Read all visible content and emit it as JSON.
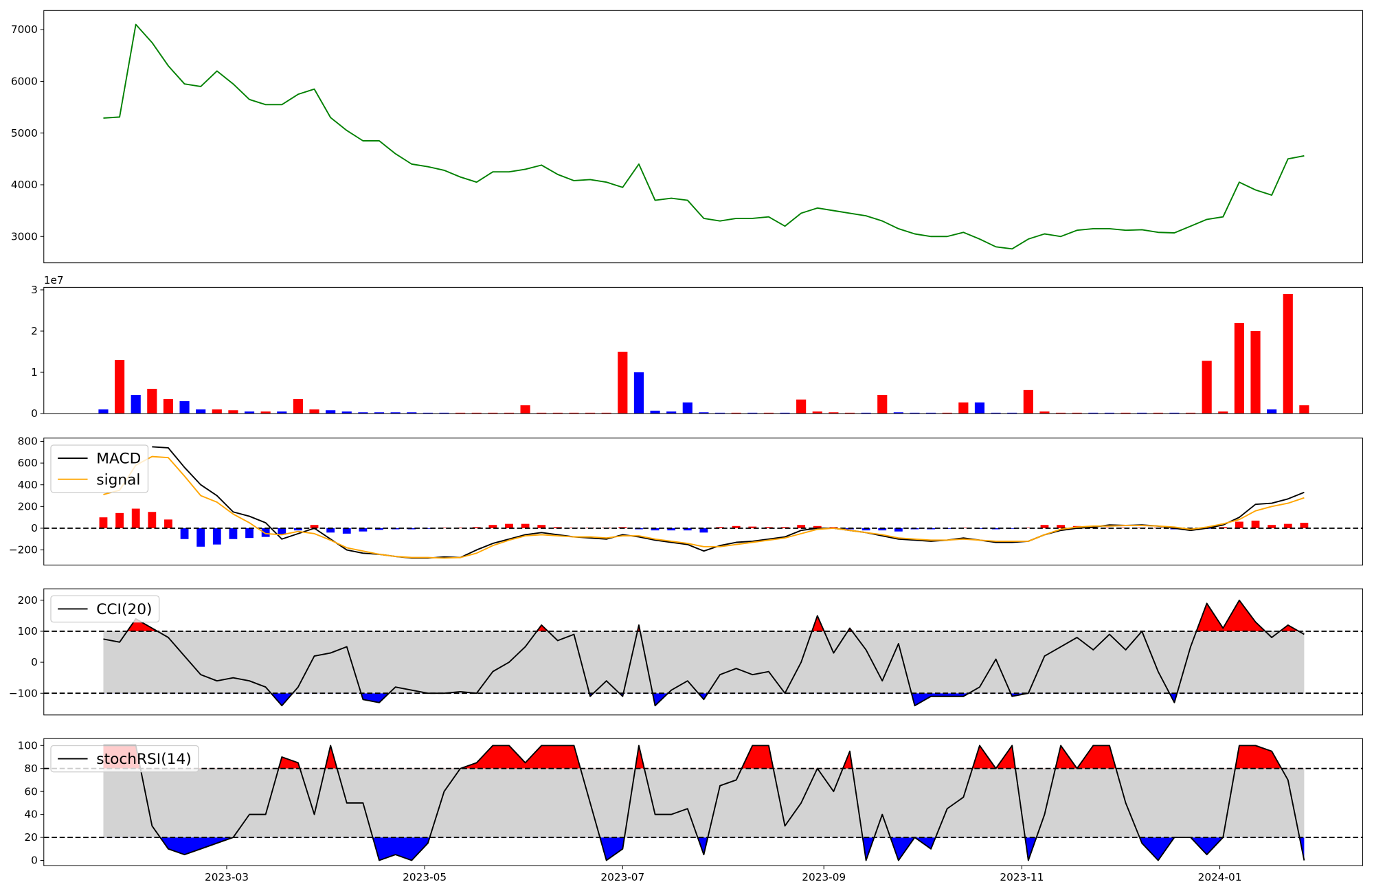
{
  "chart_data": [
    {
      "type": "line",
      "series": [
        {
          "color": "green",
          "values": [
            5290,
            5310,
            7100,
            6750,
            6300,
            5950,
            5900,
            6200,
            5950,
            5650,
            5550,
            5550,
            5750,
            5850,
            5300,
            5050,
            4850,
            4850,
            4600,
            4400,
            4350,
            4280,
            4150,
            4050,
            4250,
            4250,
            4300,
            4380,
            4200,
            4080,
            4100,
            4050,
            3950,
            4400,
            3700,
            3740,
            3700,
            3350,
            3300,
            3350,
            3350,
            3380,
            3200,
            3450,
            3550,
            3500,
            3450,
            3400,
            3300,
            3150,
            3050,
            3000,
            3000,
            3080,
            2950,
            2800,
            2760,
            2950,
            3050,
            3000,
            3120,
            3150,
            3150,
            3120,
            3130,
            3080,
            3070,
            3200,
            3330,
            3380,
            4050,
            3900,
            3800,
            4500,
            4560
          ]
        }
      ],
      "ylim": [
        2490,
        7370
      ],
      "yticks": [
        3000,
        4000,
        5000,
        6000,
        7000
      ]
    },
    {
      "type": "bar",
      "offset_label": "1e7",
      "series": [
        {
          "values": [
            1000000,
            13000000,
            4500000,
            6000000,
            3500000,
            3000000,
            1000000,
            1000000,
            800000,
            500000,
            500000,
            500000,
            3500000,
            1000000,
            800000,
            500000,
            300000,
            300000,
            300000,
            300000,
            200000,
            200000,
            200000,
            200000,
            200000,
            200000,
            2000000,
            200000,
            200000,
            200000,
            200000,
            200000,
            15000000,
            10000000,
            700000,
            500000,
            2700000,
            300000,
            200000,
            200000,
            200000,
            200000,
            200000,
            3400000,
            500000,
            300000,
            200000,
            200000,
            4500000,
            300000,
            200000,
            200000,
            200000,
            2700000,
            2700000,
            200000,
            200000,
            5700000,
            500000,
            200000,
            200000,
            200000,
            200000,
            200000,
            200000,
            200000,
            200000,
            200000,
            12800000,
            500000,
            22000000,
            20000000,
            1000000,
            29000000,
            2000000
          ],
          "colors": [
            "blue",
            "red",
            "blue",
            "red",
            "red",
            "blue",
            "blue",
            "red",
            "red",
            "blue",
            "red",
            "blue",
            "red",
            "red",
            "blue",
            "blue",
            "blue",
            "blue",
            "blue",
            "blue",
            "blue",
            "blue",
            "red",
            "red",
            "red",
            "red",
            "red",
            "red",
            "red",
            "red",
            "red",
            "red",
            "red",
            "blue",
            "blue",
            "blue",
            "blue",
            "blue",
            "blue",
            "red",
            "blue",
            "red",
            "blue",
            "red",
            "red",
            "red",
            "red",
            "blue",
            "red",
            "blue",
            "blue",
            "blue",
            "red",
            "red",
            "blue",
            "blue",
            "blue",
            "red",
            "red",
            "red",
            "red",
            "blue",
            "blue",
            "red",
            "blue",
            "red",
            "blue",
            "red",
            "red",
            "red",
            "red",
            "red",
            "blue",
            "red",
            "red"
          ]
        }
      ],
      "ylim": [
        0,
        30600000
      ],
      "yticks": [
        {
          "value": 0,
          "label": "0"
        },
        {
          "value": 10000000,
          "label": "1"
        },
        {
          "value": 20000000,
          "label": "2"
        },
        {
          "value": 30000000,
          "label": "3"
        }
      ]
    },
    {
      "type": "macd",
      "legend": "upper left",
      "levels": [
        0
      ],
      "series": [
        {
          "name": "MACD",
          "color": "black",
          "values": [
            null,
            null,
            null,
            750,
            740,
            560,
            400,
            300,
            150,
            110,
            50,
            -100,
            -50,
            0,
            -100,
            -200,
            -230,
            -240,
            -260,
            -275,
            -275,
            -265,
            -270,
            -200,
            -140,
            -100,
            -60,
            -40,
            -60,
            -80,
            -90,
            -100,
            -60,
            -80,
            -110,
            -130,
            -150,
            -210,
            -160,
            -130,
            -120,
            -100,
            -80,
            -20,
            0,
            0,
            -20,
            -40,
            -70,
            -100,
            -110,
            -120,
            -110,
            -90,
            -110,
            -130,
            -130,
            -120,
            -60,
            -20,
            0,
            10,
            30,
            25,
            30,
            20,
            0,
            -20,
            0,
            30,
            100,
            220,
            230,
            270,
            330
          ]
        },
        {
          "name": "signal",
          "color": "orange",
          "values": [
            310,
            350,
            580,
            660,
            650,
            480,
            300,
            240,
            130,
            50,
            -50,
            -60,
            -30,
            -50,
            -110,
            -180,
            -210,
            -240,
            -260,
            -270,
            -270,
            -275,
            -270,
            -230,
            -160,
            -110,
            -70,
            -60,
            -70,
            -80,
            -80,
            -90,
            -70,
            -70,
            -100,
            -120,
            -140,
            -170,
            -170,
            -150,
            -130,
            -110,
            -90,
            -50,
            -10,
            0,
            -20,
            -40,
            -60,
            -90,
            -100,
            -110,
            -110,
            -100,
            -110,
            -120,
            -120,
            -120,
            -60,
            -10,
            10,
            20,
            20,
            25,
            25,
            20,
            10,
            -10,
            10,
            40,
            80,
            160,
            200,
            230,
            280
          ]
        }
      ],
      "histogram": {
        "up_color": "red",
        "down_color": "blue",
        "values": [
          100,
          140,
          180,
          150,
          80,
          -100,
          -170,
          -150,
          -100,
          -90,
          -80,
          -60,
          -20,
          30,
          -40,
          -50,
          -30,
          -15,
          -10,
          -10,
          -5,
          5,
          5,
          10,
          30,
          40,
          40,
          30,
          10,
          5,
          5,
          5,
          10,
          -10,
          -20,
          -20,
          -20,
          -40,
          10,
          20,
          15,
          10,
          10,
          30,
          20,
          10,
          -10,
          -20,
          -20,
          -30,
          -10,
          -10,
          -5,
          5,
          -5,
          -10,
          -5,
          5,
          30,
          30,
          20,
          10,
          5,
          5,
          5,
          5,
          -10,
          -10,
          -5,
          10,
          60,
          70,
          30,
          40,
          50
        ]
      },
      "ylim": [
        -340,
        830
      ],
      "yticks": [
        {
          "value": -200,
          "label": "−200"
        },
        0,
        200,
        400,
        600,
        800
      ]
    },
    {
      "type": "oscillator",
      "legend": "upper left",
      "levels": [
        100,
        -100
      ],
      "fill_above": "red",
      "fill_below": "blue",
      "band_color": "lightgray",
      "series": [
        {
          "name": "CCI(20)",
          "color": "black",
          "values": [
            75,
            65,
            140,
            110,
            80,
            20,
            -40,
            -60,
            -50,
            -60,
            -80,
            -140,
            -80,
            20,
            30,
            50,
            -120,
            -130,
            -80,
            -90,
            -100,
            -100,
            -95,
            -100,
            -30,
            0,
            50,
            120,
            70,
            90,
            -110,
            -60,
            -110,
            120,
            -140,
            -90,
            -60,
            -120,
            -40,
            -20,
            -40,
            -30,
            -100,
            0,
            150,
            30,
            110,
            40,
            -60,
            60,
            -140,
            -110,
            -110,
            -110,
            -80,
            10,
            -110,
            -100,
            20,
            50,
            80,
            40,
            90,
            40,
            100,
            -30,
            -130,
            50,
            190,
            110,
            200,
            130,
            80,
            120,
            90
          ]
        }
      ],
      "ylim": [
        -170,
        237
      ],
      "yticks": [
        {
          "value": -100,
          "label": "−100"
        },
        0,
        100,
        200
      ]
    },
    {
      "type": "oscillator",
      "legend": "upper left",
      "levels": [
        80,
        20
      ],
      "fill_above": "red",
      "fill_below": "blue",
      "band_color": "lightgray",
      "series": [
        {
          "name": "stochRSI(14)",
          "color": "black",
          "values": [
            100,
            100,
            100,
            30,
            10,
            5,
            10,
            15,
            20,
            40,
            40,
            90,
            85,
            40,
            100,
            50,
            50,
            0,
            5,
            0,
            15,
            60,
            80,
            85,
            100,
            100,
            85,
            100,
            100,
            100,
            50,
            0,
            10,
            100,
            40,
            40,
            45,
            5,
            65,
            70,
            100,
            100,
            30,
            50,
            80,
            60,
            95,
            0,
            40,
            0,
            20,
            10,
            45,
            55,
            100,
            80,
            100,
            0,
            40,
            100,
            80,
            100,
            100,
            50,
            15,
            0,
            20,
            20,
            5,
            20,
            100,
            100,
            95,
            70,
            0
          ]
        }
      ],
      "ylim": [
        -4.6,
        106
      ],
      "yticks": [
        0,
        20,
        40,
        60,
        80,
        100
      ],
      "xlim": [
        -3.67,
        77.6
      ],
      "xticks": [
        {
          "value": 7.6,
          "label": "2023-03"
        },
        {
          "value": 19.8,
          "label": "2023-05"
        },
        {
          "value": 32,
          "label": "2023-07"
        },
        {
          "value": 44.4,
          "label": "2023-09"
        },
        {
          "value": 56.6,
          "label": "2023-11"
        },
        {
          "value": 68.8,
          "label": "2024-01"
        }
      ]
    }
  ]
}
